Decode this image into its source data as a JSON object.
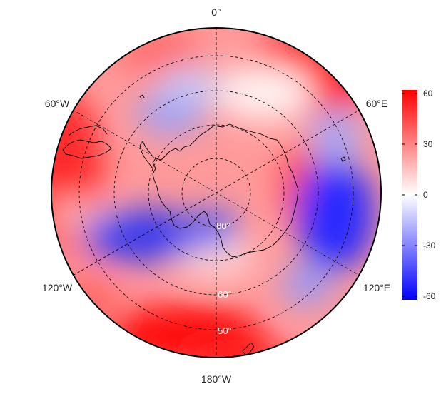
{
  "map": {
    "projection": "south-polar-stereographic",
    "longitude_labels": {
      "top": "0°",
      "upper_left": "60°W",
      "upper_right": "60°E",
      "lower_left": "120°W",
      "lower_right": "120°E",
      "bottom": "180°W"
    },
    "latitude_labels": [
      "80°",
      "60°",
      "50°"
    ],
    "gridlines": "dashed"
  },
  "colorbar": {
    "ticks": [
      "60",
      "30",
      "0",
      "-30",
      "-60"
    ],
    "range": [
      -60,
      60
    ],
    "colors": {
      "high": "#ff0000",
      "mid": "#ffffff",
      "low": "#0000ff"
    }
  }
}
